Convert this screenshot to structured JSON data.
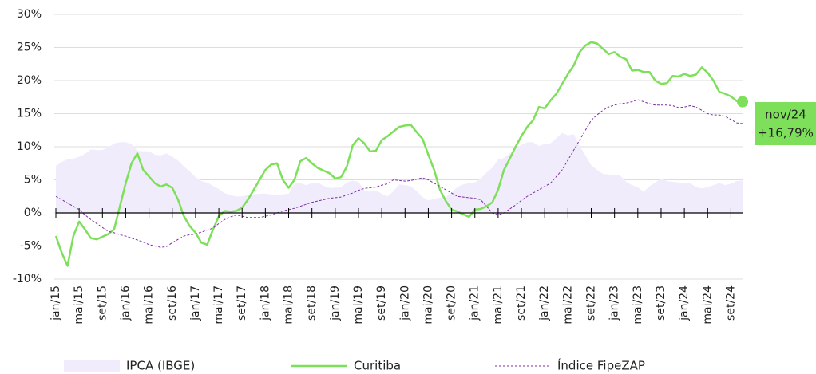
{
  "chart_data": {
    "type": "line",
    "categories": [
      "jan/15",
      null,
      null,
      null,
      "mai/15",
      null,
      null,
      null,
      "set/15",
      null,
      null,
      null,
      "jan/16",
      null,
      null,
      null,
      "mai/16",
      null,
      null,
      null,
      "set/16",
      null,
      null,
      null,
      "jan/17",
      null,
      null,
      null,
      "mai/17",
      null,
      null,
      null,
      "set/17",
      null,
      null,
      null,
      "jan/18",
      null,
      null,
      null,
      "mai/18",
      null,
      null,
      null,
      "set/18",
      null,
      null,
      null,
      "jan/19",
      null,
      null,
      null,
      "mai/19",
      null,
      null,
      null,
      "set/19",
      null,
      null,
      null,
      "jan/20",
      null,
      null,
      null,
      "mai/20",
      null,
      null,
      null,
      "set/20",
      null,
      null,
      null,
      "jan/21",
      null,
      null,
      null,
      "mai/21",
      null,
      null,
      null,
      "set/21",
      null,
      null,
      null,
      "jan/22",
      null,
      null,
      null,
      "mai/22",
      null,
      null,
      null,
      "set/22",
      null,
      null,
      null,
      "jan/23",
      null,
      null,
      null,
      "mai/23",
      null,
      null,
      null,
      "set/23",
      null,
      null,
      null,
      "jan/24",
      null,
      null,
      null,
      "mai/24",
      null,
      null,
      null,
      "set/24",
      null,
      null
    ],
    "series": [
      {
        "name": "IPCA (IBGE)",
        "kind": "area",
        "color": "#f0ecfc",
        "values": [
          7.1,
          7.7,
          8.1,
          8.2,
          8.5,
          8.9,
          9.6,
          9.5,
          9.5,
          9.9,
          10.5,
          10.7,
          10.7,
          10.4,
          9.4,
          9.3,
          9.3,
          8.8,
          8.7,
          9.0,
          8.5,
          7.9,
          7.0,
          6.3,
          5.4,
          4.8,
          4.6,
          4.1,
          3.6,
          3.0,
          2.7,
          2.5,
          2.5,
          2.7,
          2.8,
          2.9,
          2.9,
          2.8,
          2.7,
          2.8,
          2.9,
          4.4,
          4.5,
          4.2,
          4.5,
          4.6,
          4.1,
          3.8,
          3.8,
          3.9,
          4.6,
          4.9,
          4.7,
          3.4,
          3.2,
          3.4,
          2.9,
          2.5,
          3.3,
          4.3,
          4.2,
          4.0,
          3.3,
          2.4,
          1.9,
          2.1,
          2.3,
          2.4,
          3.1,
          3.9,
          4.3,
          4.5,
          4.6,
          5.2,
          6.1,
          6.8,
          8.1,
          8.3,
          9.0,
          9.7,
          10.3,
          10.7,
          10.7,
          10.1,
          10.4,
          10.5,
          11.3,
          12.1,
          11.7,
          11.9,
          10.1,
          8.7,
          7.2,
          6.5,
          5.9,
          5.8,
          5.8,
          5.6,
          4.7,
          4.2,
          3.9,
          3.2,
          4.0,
          4.6,
          5.2,
          4.8,
          4.7,
          4.6,
          4.5,
          4.5,
          3.9,
          3.7,
          3.9,
          4.2,
          4.5,
          4.2,
          4.4,
          4.8,
          4.9
        ]
      },
      {
        "name": "Curitiba",
        "kind": "line",
        "color": "#7ee05a",
        "values": [
          -3.5,
          -6,
          -8,
          -3.5,
          -1.3,
          -2.5,
          -3.8,
          -4,
          -3.6,
          -3.2,
          -2.5,
          1,
          4.5,
          7.5,
          9,
          6.5,
          5.5,
          4.5,
          4,
          4.3,
          3.8,
          2,
          -0.5,
          -2,
          -3,
          -4.5,
          -4.8,
          -2.5,
          -0.5,
          0.3,
          0.2,
          0.3,
          0.8,
          2,
          3.5,
          5,
          6.5,
          7.3,
          7.5,
          5,
          3.8,
          5,
          7.8,
          8.3,
          7.5,
          6.8,
          6.4,
          6,
          5.2,
          5.4,
          7,
          10.2,
          11.3,
          10.5,
          9.3,
          9.4,
          11,
          11.6,
          12.3,
          13,
          13.2,
          13.3,
          12.2,
          11.2,
          8.8,
          6.5,
          3.5,
          1.8,
          0.5,
          0.2,
          -0.2,
          -0.6,
          0.5,
          0.6,
          1,
          1.6,
          3.5,
          6.5,
          8.2,
          10,
          11.6,
          13,
          14,
          16,
          15.8,
          17,
          18,
          19.5,
          21,
          22.3,
          24.3,
          25.3,
          25.8,
          25.6,
          24.8,
          24,
          24.3,
          23.6,
          23.2,
          21.5,
          21.6,
          21.3,
          21.3,
          20,
          19.5,
          19.6,
          20.7,
          20.6,
          21,
          20.7,
          20.9,
          22,
          21.2,
          20,
          18.3,
          18,
          17.6,
          16.9,
          16.79
        ]
      },
      {
        "name": "Índice FipeZAP",
        "kind": "dashed",
        "color": "#7b2fa0",
        "values": [
          2.5,
          2.0,
          1.5,
          1.0,
          0.5,
          -0.3,
          -1.0,
          -1.6,
          -2.2,
          -2.8,
          -3.0,
          -3.3,
          -3.5,
          -3.8,
          -4.1,
          -4.4,
          -4.8,
          -5.0,
          -5.2,
          -5.1,
          -4.5,
          -4.0,
          -3.5,
          -3.3,
          -3.2,
          -2.9,
          -2.6,
          -2.3,
          -1.6,
          -1.0,
          -0.6,
          -0.3,
          -0.5,
          -0.7,
          -0.7,
          -0.7,
          -0.5,
          -0.3,
          0.0,
          0.3,
          0.5,
          0.7,
          1.0,
          1.3,
          1.6,
          1.8,
          2.0,
          2.2,
          2.3,
          2.4,
          2.7,
          3.0,
          3.4,
          3.7,
          3.8,
          3.9,
          4.2,
          4.4,
          5.0,
          4.9,
          4.8,
          4.9,
          5.1,
          5.3,
          5.0,
          4.5,
          4.0,
          3.5,
          3.0,
          2.5,
          2.4,
          2.3,
          2.2,
          2.0,
          1.0,
          0.0,
          -0.3,
          0.0,
          0.6,
          1.2,
          1.9,
          2.5,
          3.0,
          3.5,
          4.0,
          4.5,
          5.5,
          6.5,
          8.0,
          9.5,
          11.0,
          12.5,
          14.0,
          14.8,
          15.5,
          16.0,
          16.3,
          16.5,
          16.6,
          16.8,
          17.1,
          16.8,
          16.5,
          16.3,
          16.3,
          16.3,
          16.2,
          15.9,
          16.0,
          16.2,
          16.0,
          15.5,
          15.0,
          14.8,
          14.8,
          14.6,
          14.1,
          13.6,
          13.5
        ]
      }
    ],
    "ylim": [
      -10,
      30
    ],
    "yticks": [
      {
        "value": -10,
        "label": "-10%"
      },
      {
        "value": -5,
        "label": "-5%"
      },
      {
        "value": 0,
        "label": "0%"
      },
      {
        "value": 5,
        "label": "5%"
      },
      {
        "value": 10,
        "label": "10%"
      },
      {
        "value": 15,
        "label": "15%"
      },
      {
        "value": 20,
        "label": "20%"
      },
      {
        "value": 25,
        "label": "25%"
      },
      {
        "value": 30,
        "label": "30%"
      }
    ],
    "grid": true,
    "legend": "bottom",
    "annotation": [
      "nov/24",
      "+16,79%"
    ]
  }
}
